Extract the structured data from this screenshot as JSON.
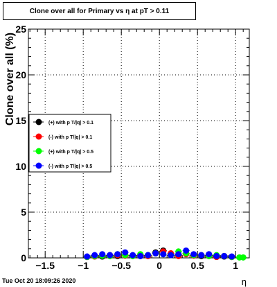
{
  "chart_data": {
    "type": "scatter",
    "title": "Clone  over all for Primary vs   η at pT > 0.11",
    "xlabel": "η",
    "ylabel": "Clone  over all (%)",
    "xlim": [
      -1.72,
      1.18
    ],
    "ylim": [
      0,
      25
    ],
    "xticks": [
      {
        "value": -1.5,
        "label": "−1.5"
      },
      {
        "value": -1,
        "label": "−1"
      },
      {
        "value": -0.5,
        "label": "−0.5"
      },
      {
        "value": 0,
        "label": "0"
      },
      {
        "value": 0.5,
        "label": "0.5"
      },
      {
        "value": 1,
        "label": "1"
      }
    ],
    "yticks": [
      {
        "value": 0,
        "label": "0"
      },
      {
        "value": 5,
        "label": "5"
      },
      {
        "value": 10,
        "label": "10"
      },
      {
        "value": 15,
        "label": "15"
      },
      {
        "value": 20,
        "label": "20"
      },
      {
        "value": 25,
        "label": "25"
      }
    ],
    "grid": true,
    "legend_position": "left-middle",
    "series": [
      {
        "name": "(+) with p T/|q| > 0.1",
        "color": "#000000",
        "x": [
          -0.95,
          -0.85,
          -0.75,
          -0.65,
          -0.55,
          -0.45,
          -0.35,
          -0.25,
          -0.15,
          -0.05,
          0.05,
          0.15,
          0.25,
          0.35,
          0.45,
          0.55,
          0.65,
          0.75,
          0.85,
          0.95
        ],
        "y": [
          0.1,
          0.2,
          0.15,
          0.3,
          0.2,
          0.3,
          0.25,
          0.2,
          0.3,
          0.6,
          0.8,
          0.4,
          0.3,
          0.5,
          0.3,
          0.2,
          0.3,
          0.2,
          0.15,
          0.1
        ]
      },
      {
        "name": "(-) with p T/|q| > 0.1",
        "color": "#ff0000",
        "x": [
          -0.95,
          -0.85,
          -0.75,
          -0.65,
          -0.55,
          -0.45,
          -0.35,
          -0.25,
          -0.15,
          -0.05,
          0.05,
          0.15,
          0.25,
          0.35,
          0.45,
          0.55,
          0.65,
          0.75,
          0.85,
          0.95
        ],
        "y": [
          0.1,
          0.15,
          0.25,
          0.2,
          0.3,
          0.25,
          0.2,
          0.3,
          0.2,
          0.5,
          0.7,
          0.5,
          0.2,
          0.4,
          0.25,
          0.3,
          0.2,
          0.1,
          0.2,
          0.1
        ]
      },
      {
        "name": "(+) with p T/|q| > 0.5",
        "color": "#00ff00",
        "x": [
          -0.95,
          -0.85,
          -0.75,
          -0.65,
          -0.55,
          -0.45,
          -0.35,
          -0.25,
          -0.15,
          -0.05,
          0.05,
          0.15,
          0.25,
          0.35,
          0.45,
          0.55,
          0.65,
          0.75,
          0.85,
          0.95,
          1.05,
          1.1
        ],
        "y": [
          0.1,
          0.2,
          0.25,
          0.2,
          0.4,
          0.3,
          0.2,
          0.4,
          0.3,
          0.5,
          0.4,
          0.3,
          0.7,
          0.5,
          0.3,
          0.3,
          0.2,
          0.3,
          0.2,
          0.1,
          0.05,
          0.05
        ]
      },
      {
        "name": "(-) with p T/|q| > 0.5",
        "color": "#0000ff",
        "x": [
          -0.95,
          -0.85,
          -0.75,
          -0.65,
          -0.55,
          -0.45,
          -0.35,
          -0.25,
          -0.15,
          -0.05,
          0.05,
          0.15,
          0.25,
          0.35,
          0.45,
          0.55,
          0.65,
          0.75,
          0.85,
          0.95
        ],
        "y": [
          0.15,
          0.3,
          0.4,
          0.3,
          0.4,
          0.6,
          0.3,
          0.2,
          0.3,
          0.5,
          0.4,
          0.3,
          0.4,
          0.8,
          0.4,
          0.3,
          0.4,
          0.2,
          0.2,
          0.15
        ]
      }
    ]
  },
  "footer": {
    "timestamp": "Tue Oct 20 18:09:26 2020"
  }
}
